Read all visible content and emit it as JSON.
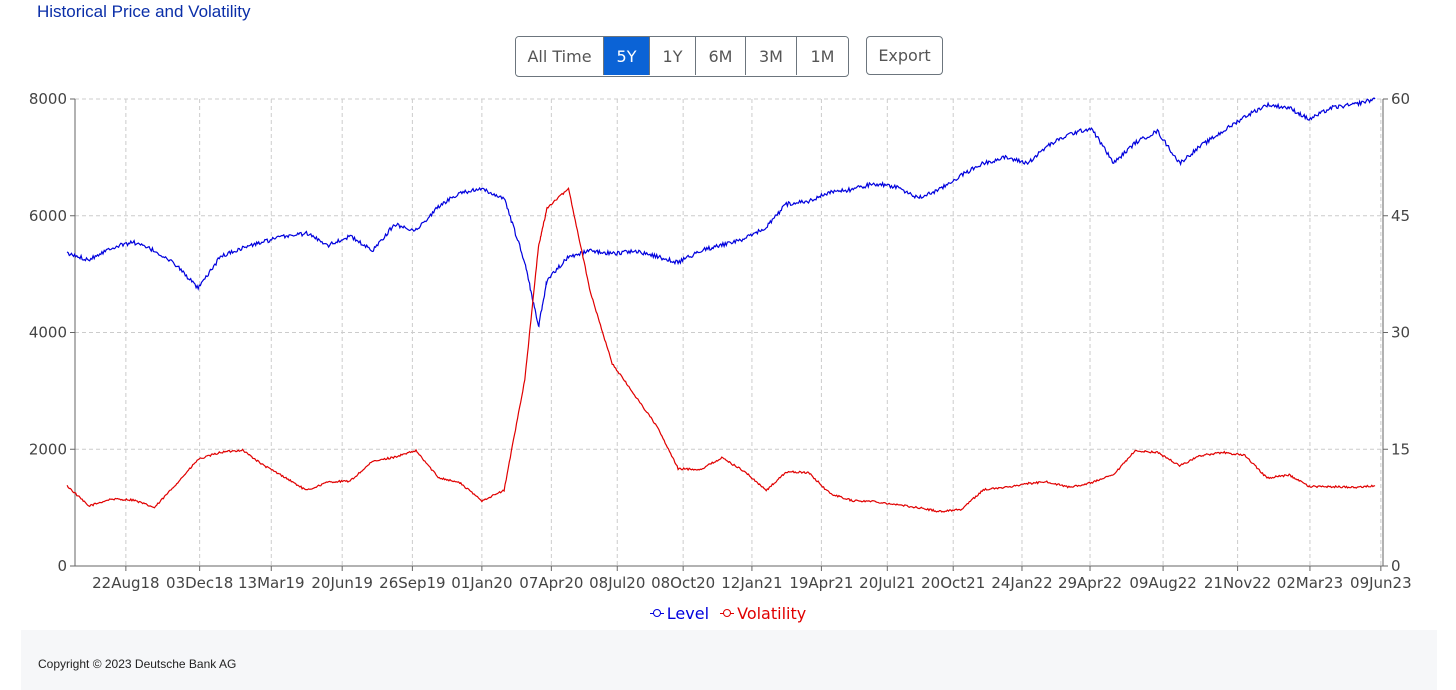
{
  "header": {
    "title": "Historical Price and Volatility"
  },
  "range_buttons": [
    {
      "label": "All Time",
      "active": false
    },
    {
      "label": "5Y",
      "active": true
    },
    {
      "label": "1Y",
      "active": false
    },
    {
      "label": "6M",
      "active": false
    },
    {
      "label": "3M",
      "active": false
    },
    {
      "label": "1M",
      "active": false
    }
  ],
  "export_label": "Export",
  "footer": {
    "copyright": "Copyright © 2023 Deutsche Bank AG"
  },
  "colors": {
    "level": "#0000dd",
    "volatility": "#e00000",
    "active_button": "#0b63d6",
    "grid": "#cccccc"
  },
  "chart_data": {
    "type": "line",
    "x_ticks": [
      "22Aug18",
      "03Dec18",
      "13Mar19",
      "20Jun19",
      "26Sep19",
      "01Jan20",
      "07Apr20",
      "08Jul20",
      "08Oct20",
      "12Jan21",
      "19Apr21",
      "20Jul21",
      "20Oct21",
      "24Jan22",
      "29Apr22",
      "09Aug22",
      "21Nov22",
      "02Mar23",
      "09Jun23"
    ],
    "y_left": {
      "lim": [
        0,
        8000
      ],
      "ticks": [
        0,
        2000,
        4000,
        6000,
        8000
      ]
    },
    "y_right": {
      "lim": [
        0,
        60
      ],
      "ticks": [
        0,
        15,
        30,
        45,
        60
      ]
    },
    "grid": true,
    "legend_position": "bottom-center",
    "series": [
      {
        "name": "Level",
        "axis": "left",
        "x": [
          "2018-06",
          "2018-07",
          "2018-08",
          "2018-09",
          "2018-10",
          "2018-11",
          "2018-12",
          "2019-01",
          "2019-02",
          "2019-03",
          "2019-04",
          "2019-05",
          "2019-06",
          "2019-07",
          "2019-08",
          "2019-09",
          "2019-10",
          "2019-11",
          "2019-12",
          "2020-01",
          "2020-02",
          "2020-03-01",
          "2020-03-20",
          "2020-04",
          "2020-05",
          "2020-06",
          "2020-07",
          "2020-08",
          "2020-09",
          "2020-10",
          "2020-11",
          "2020-12",
          "2021-01",
          "2021-02",
          "2021-03",
          "2021-04",
          "2021-05",
          "2021-06",
          "2021-07",
          "2021-08",
          "2021-09",
          "2021-10",
          "2021-11",
          "2021-12",
          "2022-01",
          "2022-02",
          "2022-03",
          "2022-04",
          "2022-05",
          "2022-06",
          "2022-07",
          "2022-08",
          "2022-09",
          "2022-10",
          "2022-11",
          "2022-12",
          "2023-01",
          "2023-02",
          "2023-03",
          "2023-04",
          "2023-05",
          "2023-06"
        ],
        "values": [
          5350,
          5250,
          5450,
          5550,
          5400,
          5150,
          4750,
          5300,
          5450,
          5550,
          5650,
          5700,
          5500,
          5650,
          5400,
          5850,
          5750,
          6150,
          6400,
          6450,
          6300,
          5200,
          4100,
          4900,
          5300,
          5400,
          5350,
          5400,
          5300,
          5200,
          5400,
          5500,
          5600,
          5800,
          6200,
          6250,
          6400,
          6450,
          6550,
          6500,
          6300,
          6450,
          6700,
          6900,
          7000,
          6900,
          7200,
          7400,
          7500,
          6900,
          7250,
          7450,
          6900,
          7200,
          7450,
          7700,
          7900,
          7850,
          7650,
          7850,
          7900,
          8000
        ]
      },
      {
        "name": "Volatility",
        "axis": "right",
        "x": [
          "2018-06",
          "2018-07",
          "2018-08",
          "2018-09",
          "2018-10",
          "2018-11",
          "2018-12",
          "2019-01",
          "2019-02",
          "2019-03",
          "2019-04",
          "2019-05",
          "2019-06",
          "2019-07",
          "2019-08",
          "2019-09",
          "2019-10",
          "2019-11",
          "2019-12",
          "2020-01",
          "2020-02",
          "2020-03-01",
          "2020-03-20",
          "2020-04",
          "2020-05",
          "2020-06",
          "2020-07",
          "2020-08",
          "2020-09",
          "2020-10",
          "2020-11",
          "2020-12",
          "2021-01",
          "2021-02",
          "2021-03",
          "2021-04",
          "2021-05",
          "2021-06",
          "2021-07",
          "2021-08",
          "2021-09",
          "2021-10",
          "2021-11",
          "2021-12",
          "2022-01",
          "2022-02",
          "2022-03",
          "2022-04",
          "2022-05",
          "2022-06",
          "2022-07",
          "2022-08",
          "2022-09",
          "2022-10",
          "2022-11",
          "2022-12",
          "2023-01",
          "2023-02",
          "2023-03",
          "2023-04",
          "2023-05",
          "2023-06"
        ],
        "values": [
          10.3,
          7.7,
          8.6,
          8.5,
          7.5,
          10.6,
          13.7,
          14.6,
          14.9,
          13.0,
          11.4,
          9.7,
          10.8,
          10.9,
          13.4,
          14.0,
          14.8,
          11.4,
          10.7,
          8.4,
          9.7,
          24.0,
          41.0,
          46.0,
          48.5,
          35.0,
          26.0,
          22.0,
          18.0,
          12.5,
          12.4,
          13.9,
          12.2,
          9.7,
          12.1,
          12.0,
          9.3,
          8.4,
          8.3,
          7.9,
          7.5,
          7.0,
          7.3,
          9.8,
          10.1,
          10.6,
          10.8,
          10.1,
          10.7,
          11.7,
          14.8,
          14.6,
          12.9,
          14.2,
          14.6,
          14.2,
          11.3,
          11.7,
          10.2,
          10.2,
          10.1,
          10.3
        ]
      }
    ]
  }
}
